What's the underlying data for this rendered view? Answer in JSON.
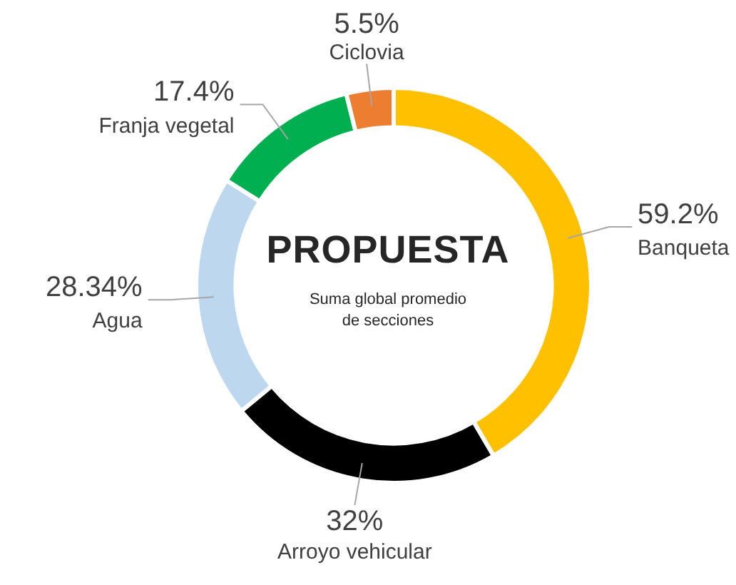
{
  "chart_data": {
    "type": "donut",
    "title": "PROPUESTA",
    "subtitle": "Suma global promedio de secciones",
    "categories": [
      "Banqueta",
      "Arroyo vehicular",
      "Agua",
      "Franja vegetal",
      "Ciclovia"
    ],
    "values": [
      59.2,
      32,
      28.34,
      17.4,
      5.5
    ],
    "value_labels": [
      "59.2%",
      "32%",
      "28.34%",
      "17.4%",
      "5.5%"
    ],
    "colors": [
      "#ffc000",
      "#000000",
      "#bdd7ee",
      "#00b050",
      "#ed7d31"
    ],
    "legend": false
  }
}
